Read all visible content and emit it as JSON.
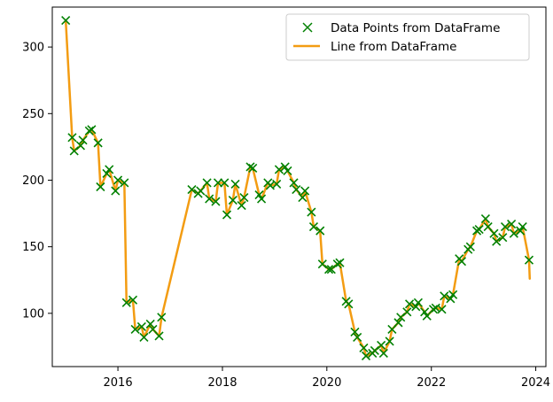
{
  "chart_data": {
    "type": "line",
    "title": "",
    "xlabel": "",
    "ylabel": "",
    "x_axis_type": "date",
    "xlim": [
      "2014-09-29",
      "2024-03-12"
    ],
    "ylim": [
      60,
      330
    ],
    "grid": false,
    "legend_position": "top-right",
    "x_ticks": [
      {
        "value": "2016-01-01",
        "label": "2016"
      },
      {
        "value": "2018-01-01",
        "label": "2018"
      },
      {
        "value": "2020-01-01",
        "label": "2020"
      },
      {
        "value": "2022-01-01",
        "label": "2022"
      },
      {
        "value": "2024-01-01",
        "label": "2024"
      }
    ],
    "y_ticks": [
      100,
      150,
      200,
      250,
      300
    ],
    "series": [
      {
        "name": "Data Points from DataFrame",
        "kind": "scatter",
        "marker": "x",
        "color": "#008000",
        "x": [
          "2015-01-01",
          "2015-02-15",
          "2015-03-01",
          "2015-04-15",
          "2015-05-01",
          "2015-06-15",
          "2015-07-01",
          "2015-08-15",
          "2015-09-01",
          "2015-10-15",
          "2015-11-01",
          "2015-12-15",
          "2016-01-01",
          "2016-02-15",
          "2016-03-01",
          "2016-04-15",
          "2016-05-01",
          "2016-06-15",
          "2016-07-01",
          "2016-08-15",
          "2016-09-01",
          "2016-10-15",
          "2016-11-01",
          "2017-06-01",
          "2017-07-15",
          "2017-08-01",
          "2017-09-15",
          "2017-10-01",
          "2017-11-15",
          "2017-12-01",
          "2018-01-15",
          "2018-02-01",
          "2018-03-15",
          "2018-04-01",
          "2018-05-15",
          "2018-06-01",
          "2018-07-15",
          "2018-08-01",
          "2018-09-15",
          "2018-10-01",
          "2018-11-15",
          "2018-12-01",
          "2019-01-15",
          "2019-02-01",
          "2019-03-15",
          "2019-04-01",
          "2019-05-15",
          "2019-06-01",
          "2019-07-15",
          "2019-08-01",
          "2019-09-15",
          "2019-10-01",
          "2019-11-15",
          "2019-12-01",
          "2020-01-15",
          "2020-02-01",
          "2020-03-15",
          "2020-04-01",
          "2020-05-15",
          "2020-06-01",
          "2020-07-15",
          "2020-08-01",
          "2020-09-15",
          "2020-10-01",
          "2020-11-15",
          "2020-12-01",
          "2021-01-15",
          "2021-02-01",
          "2021-03-15",
          "2021-04-01",
          "2021-05-15",
          "2021-06-01",
          "2021-07-15",
          "2021-08-01",
          "2021-09-15",
          "2021-10-01",
          "2021-11-15",
          "2021-12-01",
          "2022-01-15",
          "2022-02-01",
          "2022-03-15",
          "2022-04-01",
          "2022-05-15",
          "2022-06-01",
          "2022-07-15",
          "2022-08-01",
          "2022-09-15",
          "2022-10-01",
          "2022-11-15",
          "2022-12-01",
          "2023-01-15",
          "2023-02-01",
          "2023-03-15",
          "2023-04-01",
          "2023-05-15",
          "2023-06-01",
          "2023-07-15",
          "2023-08-01",
          "2023-09-15",
          "2023-10-01",
          "2023-11-15"
        ],
        "y": [
          320,
          232,
          222,
          226,
          230,
          237,
          238,
          228,
          195,
          205,
          208,
          192,
          200,
          198,
          108,
          110,
          88,
          90,
          82,
          92,
          88,
          83,
          97,
          193,
          190,
          192,
          198,
          186,
          184,
          198,
          198,
          174,
          185,
          197,
          181,
          187,
          210,
          209,
          189,
          186,
          198,
          196,
          197,
          208,
          210,
          207,
          198,
          193,
          187,
          192,
          176,
          165,
          162,
          137,
          133,
          133,
          137,
          138,
          109,
          107,
          86,
          82,
          74,
          68,
          70,
          72,
          76,
          70,
          79,
          88,
          93,
          97,
          101,
          107,
          105,
          108,
          101,
          98,
          103,
          104,
          103,
          113,
          111,
          114,
          141,
          139,
          148,
          150,
          162,
          163,
          171,
          165,
          160,
          154,
          157,
          165,
          167,
          160,
          162,
          165,
          140
        ]
      },
      {
        "name": "Line from DataFrame",
        "kind": "line",
        "color": "#f39c12",
        "x": [
          "2015-01-01",
          "2015-02-15",
          "2015-03-01",
          "2015-04-15",
          "2015-05-01",
          "2015-06-15",
          "2015-07-01",
          "2015-08-15",
          "2015-09-01",
          "2015-10-15",
          "2015-11-01",
          "2015-12-15",
          "2016-01-01",
          "2016-02-15",
          "2016-03-01",
          "2016-04-15",
          "2016-05-01",
          "2016-06-15",
          "2016-07-01",
          "2016-08-15",
          "2016-09-01",
          "2016-10-15",
          "2016-11-01",
          "2017-06-01",
          "2017-07-15",
          "2017-08-01",
          "2017-09-15",
          "2017-10-01",
          "2017-11-15",
          "2017-12-01",
          "2018-01-15",
          "2018-02-01",
          "2018-03-15",
          "2018-04-01",
          "2018-05-15",
          "2018-06-01",
          "2018-07-15",
          "2018-08-01",
          "2018-09-15",
          "2018-10-01",
          "2018-11-15",
          "2018-12-01",
          "2019-01-15",
          "2019-02-01",
          "2019-03-15",
          "2019-04-01",
          "2019-05-15",
          "2019-06-01",
          "2019-07-15",
          "2019-08-01",
          "2019-09-15",
          "2019-10-01",
          "2019-11-15",
          "2019-12-01",
          "2020-01-15",
          "2020-02-01",
          "2020-03-15",
          "2020-04-01",
          "2020-05-15",
          "2020-06-01",
          "2020-07-15",
          "2020-08-01",
          "2020-09-15",
          "2020-10-01",
          "2020-11-15",
          "2020-12-01",
          "2021-01-15",
          "2021-02-01",
          "2021-03-15",
          "2021-04-01",
          "2021-05-15",
          "2021-06-01",
          "2021-07-15",
          "2021-08-01",
          "2021-09-15",
          "2021-10-01",
          "2021-11-15",
          "2021-12-01",
          "2022-01-15",
          "2022-02-01",
          "2022-03-15",
          "2022-04-01",
          "2022-05-15",
          "2022-06-01",
          "2022-07-15",
          "2022-08-01",
          "2022-09-15",
          "2022-10-01",
          "2022-11-15",
          "2022-12-01",
          "2023-01-15",
          "2023-02-01",
          "2023-03-15",
          "2023-04-01",
          "2023-05-15",
          "2023-06-01",
          "2023-07-15",
          "2023-08-01",
          "2023-09-15",
          "2023-10-01",
          "2023-11-15",
          "2023-11-20"
        ],
        "y": [
          320,
          232,
          222,
          226,
          230,
          237,
          238,
          228,
          195,
          205,
          208,
          192,
          200,
          198,
          108,
          110,
          88,
          90,
          82,
          92,
          88,
          83,
          97,
          193,
          190,
          192,
          198,
          186,
          184,
          198,
          198,
          174,
          185,
          197,
          181,
          187,
          210,
          209,
          189,
          186,
          198,
          196,
          197,
          208,
          210,
          207,
          198,
          193,
          187,
          192,
          176,
          165,
          162,
          137,
          133,
          133,
          137,
          138,
          109,
          107,
          86,
          82,
          74,
          68,
          70,
          72,
          76,
          70,
          79,
          88,
          93,
          97,
          101,
          107,
          105,
          108,
          101,
          98,
          103,
          104,
          103,
          113,
          111,
          114,
          141,
          139,
          148,
          150,
          162,
          163,
          171,
          165,
          160,
          154,
          157,
          165,
          167,
          160,
          162,
          165,
          140,
          126
        ]
      }
    ],
    "legend": [
      {
        "label": "Data Points from DataFrame",
        "marker": "x",
        "color": "#008000"
      },
      {
        "label": "Line from DataFrame",
        "marker": "line",
        "color": "#f39c12"
      }
    ]
  }
}
